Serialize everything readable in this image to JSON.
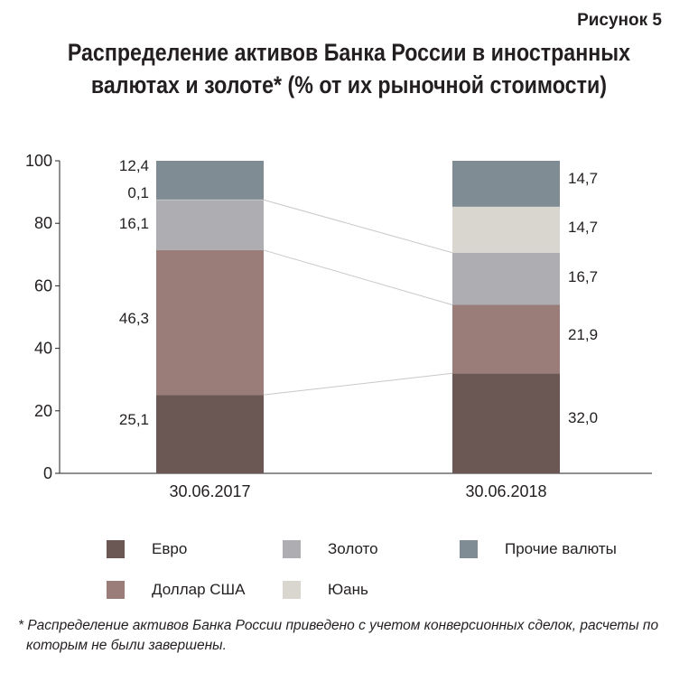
{
  "figure_label": "Рисунок 5",
  "title_line1": "Распределение активов Банка России в иностранных",
  "title_line2": "валютах и золоте* (% от их рыночной стоимости)",
  "footnote_line1": "* Распределение активов Банка России приведено с учетом конверсионных сделок, расчеты по",
  "footnote_line2": "которым не были завершены.",
  "chart_data": {
    "type": "bar",
    "stacked": true,
    "categories": [
      "30.06.2017",
      "30.06.2018"
    ],
    "ylim": [
      0,
      100
    ],
    "yticks": [
      0,
      20,
      40,
      60,
      80,
      100
    ],
    "series": [
      {
        "name": "Евро",
        "values": [
          25.1,
          32.0
        ],
        "labels": [
          "25,1",
          "32,0"
        ],
        "color": "#6b5753"
      },
      {
        "name": "Доллар США",
        "values": [
          46.3,
          21.9
        ],
        "labels": [
          "46,3",
          "21,9"
        ],
        "color": "#9a7d78"
      },
      {
        "name": "Золото",
        "values": [
          16.1,
          16.7
        ],
        "labels": [
          "16,1",
          "16,7"
        ],
        "color": "#aeadb2"
      },
      {
        "name": "Юань",
        "values": [
          0.1,
          14.7
        ],
        "labels": [
          "0,1",
          "14,7"
        ],
        "color": "#d9d6d0"
      },
      {
        "name": "Прочие валюты",
        "values": [
          12.4,
          14.7
        ],
        "labels": [
          "12,4",
          "14,7"
        ],
        "color": "#7f8c93"
      }
    ],
    "legend_placement": "bottom",
    "grid": false
  }
}
